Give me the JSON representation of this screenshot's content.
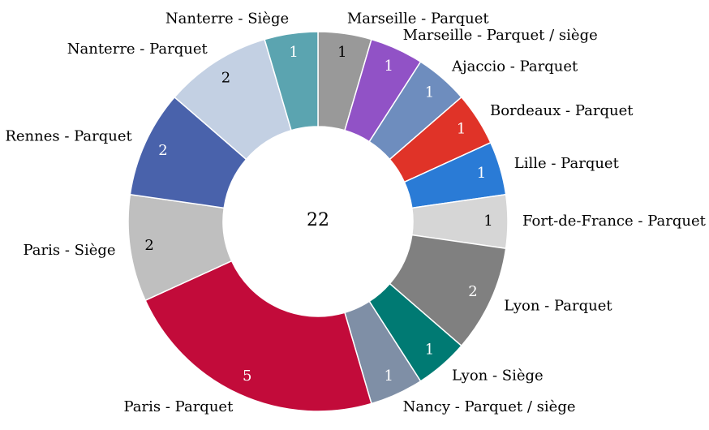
{
  "chart_data": {
    "type": "pie",
    "variant": "donut",
    "total_label": "22",
    "legend": "none",
    "slices": [
      {
        "label": "Marseille - Parquet",
        "value": 1,
        "value_label": "1",
        "color": "#999999",
        "value_color": "#000000"
      },
      {
        "label": "Marseille - Parquet / siège",
        "value": 1,
        "value_label": "1",
        "color": "#9152C6",
        "value_color": "#ffffff"
      },
      {
        "label": "Ajaccio - Parquet",
        "value": 1,
        "value_label": "1",
        "color": "#6E8DBE",
        "value_color": "#ffffff"
      },
      {
        "label": "Bordeaux - Parquet",
        "value": 1,
        "value_label": "1",
        "color": "#E03328",
        "value_color": "#ffffff"
      },
      {
        "label": "Lille - Parquet",
        "value": 1,
        "value_label": "1",
        "color": "#2A7BD6",
        "value_color": "#ffffff"
      },
      {
        "label": "Fort-de-France - Parquet",
        "value": 1,
        "value_label": "1",
        "color": "#D6D6D6",
        "value_color": "#000000"
      },
      {
        "label": "Lyon - Parquet",
        "value": 2,
        "value_label": "2",
        "color": "#808080",
        "value_color": "#ffffff"
      },
      {
        "label": "Lyon - Siège",
        "value": 1,
        "value_label": "1",
        "color": "#007A73",
        "value_color": "#ffffff"
      },
      {
        "label": "Nancy - Parquet / siège",
        "value": 1,
        "value_label": "1",
        "color": "#7F8FA6",
        "value_color": "#ffffff"
      },
      {
        "label": "Paris - Parquet",
        "value": 5,
        "value_label": "5",
        "color": "#C20B3A",
        "value_color": "#ffffff"
      },
      {
        "label": "Paris - Siège",
        "value": 2,
        "value_label": "2",
        "color": "#BFBFBF",
        "value_color": "#000000"
      },
      {
        "label": "Rennes - Parquet",
        "value": 2,
        "value_label": "2",
        "color": "#4962AB",
        "value_color": "#ffffff"
      },
      {
        "label": "Nanterre - Parquet",
        "value": 2,
        "value_label": "2",
        "color": "#C3D0E3",
        "value_color": "#000000"
      },
      {
        "label": "Nanterre - Siège",
        "value": 1,
        "value_label": "1",
        "color": "#5BA4B0",
        "value_color": "#ffffff"
      }
    ]
  }
}
